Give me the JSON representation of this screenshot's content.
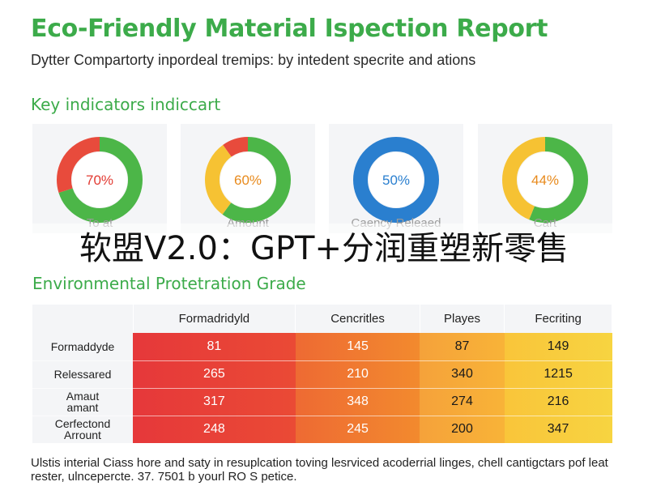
{
  "header": {
    "title": "Eco-Friendly Material Ispection Report",
    "subtitle": "Dytter Compartorty inpordeal tremips: by intedent specrite and ations"
  },
  "indicators": {
    "section_title": "Key indicators indiccart",
    "cards": [
      {
        "value_label": "70%",
        "label": "To at",
        "segments": [
          {
            "fraction": 0.7,
            "color": "#4cb648"
          },
          {
            "fraction": 0.3,
            "color": "#e84b3c"
          }
        ],
        "text_color": "#e23a32"
      },
      {
        "value_label": "60%",
        "label": "Amount",
        "segments": [
          {
            "fraction": 0.6,
            "color": "#4cb648"
          },
          {
            "fraction": 0.3,
            "color": "#f6c233"
          },
          {
            "fraction": 0.1,
            "color": "#e84b3c"
          }
        ],
        "text_color": "#e88a1c"
      },
      {
        "value_label": "50%",
        "label": "Caency Releaed",
        "segments": [
          {
            "fraction": 1.0,
            "color": "#2a7fcf"
          }
        ],
        "text_color": "#2a7fcf"
      },
      {
        "value_label": "44%",
        "label": "Cart",
        "segments": [
          {
            "fraction": 0.56,
            "color": "#4cb648"
          },
          {
            "fraction": 0.44,
            "color": "#f6c233"
          }
        ],
        "text_color": "#e88a1c"
      }
    ]
  },
  "overlay_banner": "软盟V2.0：GPT+分润重塑新零售",
  "grade": {
    "section_title": "Environmental Protetration Grade",
    "columns": [
      "Formadridyld",
      "Cencritles",
      "Playes",
      "Fecriting"
    ],
    "rows": [
      {
        "label": "Formaddyde",
        "values": [
          "81",
          "145",
          "87",
          "149"
        ]
      },
      {
        "label": "Relessared",
        "values": [
          "265",
          "210",
          "340",
          "1215"
        ]
      },
      {
        "label": "Amaut\namant",
        "values": [
          "317",
          "348",
          "274",
          "216"
        ]
      },
      {
        "label": "Cerfectond\nArrount",
        "values": [
          "248",
          "245",
          "200",
          "347"
        ]
      }
    ]
  },
  "footnote": "Ulstis interial Ciass hore and saty in resuplcation toving lesrviced acoderrial linges, chell cantigctars pof leat rester, ulncepercte. 37. 7501 b yourl RO S petice.",
  "colors": {
    "accent_green": "#3cab4a",
    "card_bg": "#f4f5f7",
    "heat_red": "#e6383a",
    "heat_orange": "#f28a2e",
    "heat_amber": "#f8b338",
    "heat_yellow": "#f7d441"
  }
}
